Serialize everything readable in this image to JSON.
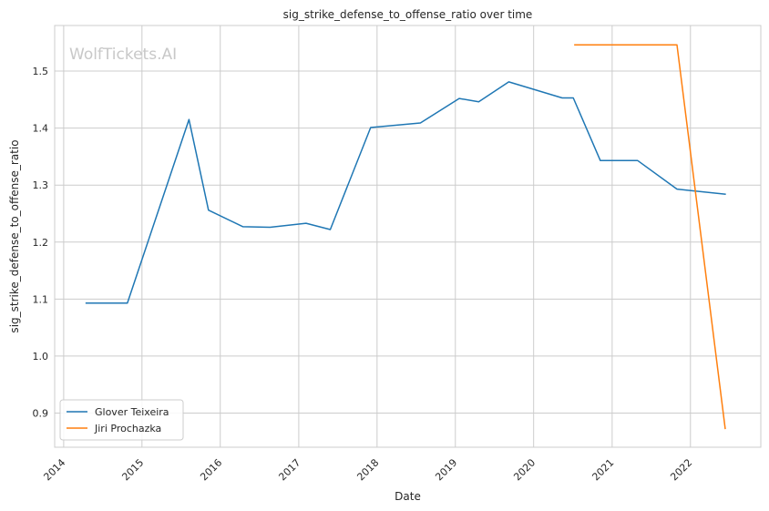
{
  "chart_data": {
    "type": "line",
    "title": "sig_strike_defense_to_offense_ratio over time",
    "xlabel": "Date",
    "ylabel": "sig_strike_defense_to_offense_ratio",
    "watermark": "WolfTickets.AI",
    "x_ticks": [
      "2014",
      "2015",
      "2016",
      "2017",
      "2018",
      "2019",
      "2020",
      "2021",
      "2022"
    ],
    "y_ticks": [
      "0.9",
      "1.0",
      "1.1",
      "1.2",
      "1.3",
      "1.4",
      "1.5"
    ],
    "xlim": [
      "2013-11-20",
      "2022-11-25"
    ],
    "ylim": [
      0.84,
      1.58
    ],
    "grid": true,
    "legend_position": "lower-left",
    "series": [
      {
        "name": "Glover Teixeira",
        "color": "#1f77b4",
        "points": [
          [
            "2014-04-16",
            1.093
          ],
          [
            "2014-10-25",
            1.093
          ],
          [
            "2015-08-08",
            1.415
          ],
          [
            "2015-11-07",
            1.256
          ],
          [
            "2016-04-16",
            1.227
          ],
          [
            "2016-08-20",
            1.226
          ],
          [
            "2017-02-04",
            1.233
          ],
          [
            "2017-05-28",
            1.222
          ],
          [
            "2017-12-02",
            1.401
          ],
          [
            "2018-07-22",
            1.409
          ],
          [
            "2019-01-19",
            1.452
          ],
          [
            "2019-04-20",
            1.446
          ],
          [
            "2019-09-07",
            1.481
          ],
          [
            "2020-05-13",
            1.453
          ],
          [
            "2020-07-04",
            1.453
          ],
          [
            "2020-11-07",
            1.343
          ],
          [
            "2021-04-30",
            1.343
          ],
          [
            "2021-10-30",
            1.293
          ],
          [
            "2022-06-12",
            1.284
          ]
        ]
      },
      {
        "name": "Jiri Prochazka",
        "color": "#ff7f0e",
        "points": [
          [
            "2020-07-11",
            1.546
          ],
          [
            "2021-05-01",
            1.546
          ],
          [
            "2021-10-30",
            1.546
          ],
          [
            "2022-06-12",
            0.873
          ]
        ]
      }
    ]
  }
}
